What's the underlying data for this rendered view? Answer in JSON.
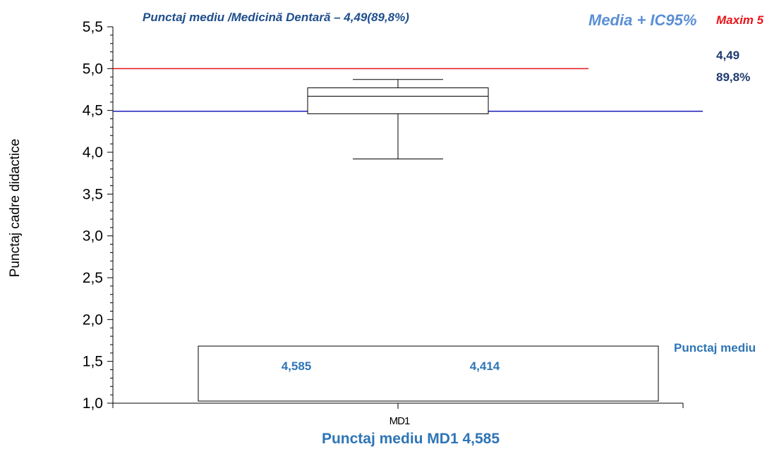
{
  "chart_data": {
    "type": "box",
    "title": "Punctaj mediu /Medicină Dentară – 4,49(89,8%)",
    "ylabel": "Punctaj cadre didactice",
    "xlabel": "",
    "ylim": [
      1.0,
      5.5
    ],
    "yticks": [
      "1,0",
      "1,5",
      "2,0",
      "2,5",
      "3,0",
      "3,5",
      "4,0",
      "4,5",
      "5,0",
      "5,5"
    ],
    "ytick_values": [
      1.0,
      1.5,
      2.0,
      2.5,
      3.0,
      3.5,
      4.0,
      4.5,
      5.0,
      5.5
    ],
    "categories": [
      "MD1"
    ],
    "box": {
      "min": 3.92,
      "q1": 4.46,
      "median": 4.67,
      "q3": 4.77,
      "max": 4.87
    },
    "reference_lines": [
      {
        "label": "Maxim 5",
        "value": 5.0,
        "color": "#e8141a"
      },
      {
        "label": "4,49",
        "value": 4.49,
        "color": "#1a1ab8"
      }
    ],
    "annotations": {
      "legend_media": "Media + IC95%",
      "legend_maxim": "Maxim 5",
      "mean_value": "4,49",
      "mean_percent": "89,8%",
      "table_label": "Punctaj mediu",
      "table_value_1": "4,585",
      "table_value_2": "4,414",
      "footer": "Punctaj mediu MD1 4,585"
    },
    "colors": {
      "title": "#1f4e8c",
      "legend_media": "#5b8fd6",
      "maxim": "#e8141a",
      "mean_text": "#1f3a6e",
      "table_text": "#2e75b6",
      "mean_line": "#1a1ab8",
      "max_line": "#e8141a"
    }
  }
}
